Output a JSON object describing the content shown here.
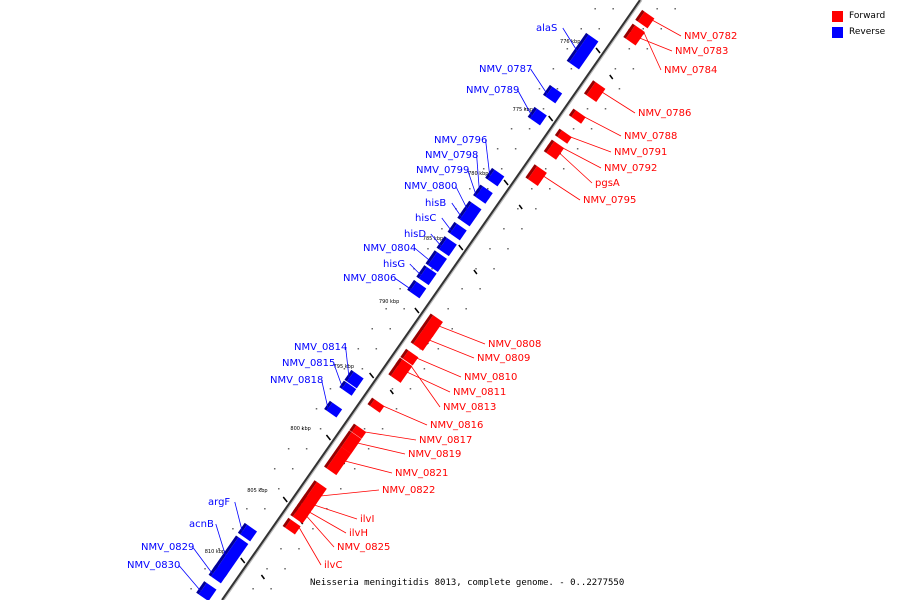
{
  "legend": {
    "forward_label": "Forward",
    "reverse_label": "Reverse",
    "forward_color": "#ff0000",
    "reverse_color": "#0000ff"
  },
  "caption": "Neisseria meningitidis 8013, complete genome. - 0..2277550",
  "ticks": [
    "776 kbp",
    "775 kbp",
    "780 kbp",
    "785 kbp",
    "790 kbp",
    "795 kbp",
    "800 kbp",
    "805 kbp",
    "810 kbp"
  ],
  "forward_genes": [
    "NMV_0782",
    "NMV_0783",
    "NMV_0784",
    "NMV_0786",
    "NMV_0788",
    "NMV_0791",
    "NMV_0792",
    "pgsA",
    "NMV_0795",
    "NMV_0808",
    "NMV_0809",
    "NMV_0810",
    "NMV_0811",
    "NMV_0813",
    "NMV_0816",
    "NMV_0817",
    "NMV_0819",
    "NMV_0821",
    "NMV_0822",
    "ilvI",
    "ilvH",
    "NMV_0825",
    "ilvC"
  ],
  "reverse_genes": [
    "alaS",
    "NMV_0787",
    "NMV_0789",
    "NMV_0796",
    "NMV_0798",
    "NMV_0799",
    "NMV_0800",
    "hisB",
    "hisC",
    "hisD",
    "NMV_0804",
    "hisG",
    "NMV_0806",
    "NMV_0814",
    "NMV_0815",
    "NMV_0818",
    "argF",
    "acnB",
    "NMV_0829",
    "NMV_0830"
  ]
}
